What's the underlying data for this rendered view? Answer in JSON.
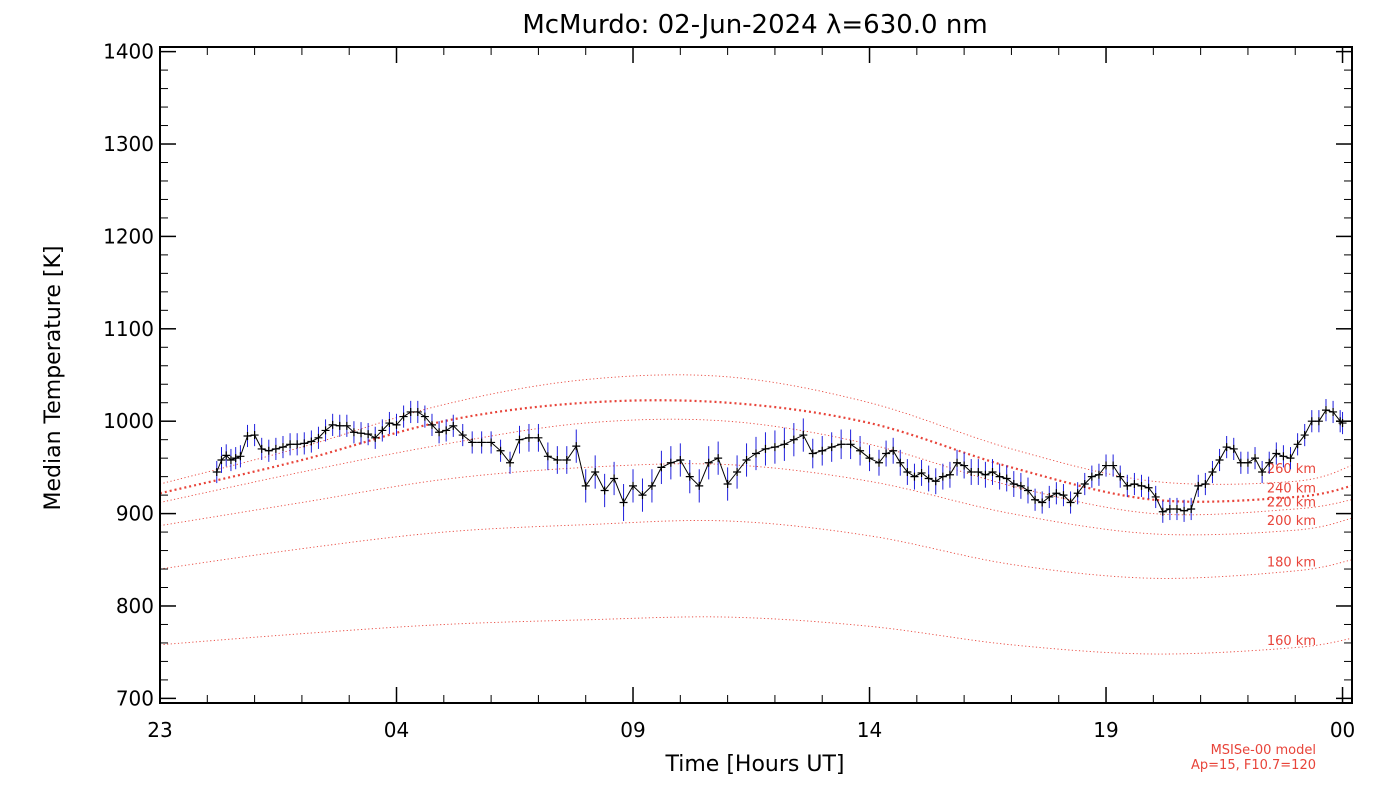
{
  "chart_data": {
    "type": "line",
    "title": "McMurdo: 02-Jun-2024 λ=630.0 nm",
    "xlabel": "Time [Hours UT]",
    "ylabel": "Median Temperature [K]",
    "xlim": [
      23,
      48.2
    ],
    "ylim": [
      695,
      1405
    ],
    "x_ticks": [
      {
        "value": 23,
        "label": "23"
      },
      {
        "value": 28,
        "label": "04"
      },
      {
        "value": 33,
        "label": "09"
      },
      {
        "value": 38,
        "label": "14"
      },
      {
        "value": 43,
        "label": "19"
      },
      {
        "value": 48,
        "label": "00"
      }
    ],
    "y_ticks": [
      {
        "value": 700,
        "label": "700"
      },
      {
        "value": 800,
        "label": "800"
      },
      {
        "value": 900,
        "label": "900"
      },
      {
        "value": 1000,
        "label": "1000"
      },
      {
        "value": 1100,
        "label": "1100"
      },
      {
        "value": 1200,
        "label": "1200"
      },
      {
        "value": 1300,
        "label": "1300"
      },
      {
        "value": 1400,
        "label": "1400"
      }
    ],
    "measurement": {
      "color": "#000000",
      "error_color": "#1f1fdc",
      "points": [
        [
          24.2,
          945,
          12
        ],
        [
          24.3,
          958,
          14
        ],
        [
          24.4,
          963,
          12
        ],
        [
          24.5,
          958,
          12
        ],
        [
          24.6,
          960,
          12
        ],
        [
          24.7,
          962,
          12
        ],
        [
          24.85,
          984,
          12
        ],
        [
          25.0,
          985,
          12
        ],
        [
          25.15,
          970,
          12
        ],
        [
          25.3,
          968,
          12
        ],
        [
          25.45,
          970,
          12
        ],
        [
          25.6,
          972,
          12
        ],
        [
          25.75,
          975,
          12
        ],
        [
          25.9,
          975,
          12
        ],
        [
          26.05,
          976,
          12
        ],
        [
          26.2,
          978,
          12
        ],
        [
          26.35,
          982,
          12
        ],
        [
          26.5,
          990,
          12
        ],
        [
          26.65,
          996,
          12
        ],
        [
          26.8,
          995,
          12
        ],
        [
          26.95,
          995,
          12
        ],
        [
          27.1,
          988,
          12
        ],
        [
          27.25,
          987,
          12
        ],
        [
          27.4,
          986,
          12
        ],
        [
          27.55,
          982,
          12
        ],
        [
          27.7,
          990,
          12
        ],
        [
          27.85,
          998,
          12
        ],
        [
          28.0,
          996,
          12
        ],
        [
          28.15,
          1005,
          12
        ],
        [
          28.3,
          1010,
          12
        ],
        [
          28.45,
          1010,
          12
        ],
        [
          28.6,
          1005,
          12
        ],
        [
          28.75,
          996,
          12
        ],
        [
          28.9,
          988,
          12
        ],
        [
          29.05,
          990,
          12
        ],
        [
          29.2,
          995,
          12
        ],
        [
          29.4,
          985,
          12
        ],
        [
          29.6,
          977,
          12
        ],
        [
          29.8,
          977,
          12
        ],
        [
          30.0,
          977,
          12
        ],
        [
          30.2,
          968,
          12
        ],
        [
          30.4,
          955,
          12
        ],
        [
          30.6,
          980,
          15
        ],
        [
          30.8,
          982,
          15
        ],
        [
          31.0,
          982,
          15
        ],
        [
          31.2,
          962,
          15
        ],
        [
          31.4,
          958,
          15
        ],
        [
          31.6,
          958,
          15
        ],
        [
          31.8,
          973,
          18
        ],
        [
          32.0,
          930,
          18
        ],
        [
          32.2,
          945,
          18
        ],
        [
          32.4,
          925,
          18
        ],
        [
          32.6,
          938,
          18
        ],
        [
          32.8,
          912,
          20
        ],
        [
          33.0,
          930,
          18
        ],
        [
          33.2,
          920,
          18
        ],
        [
          33.4,
          930,
          18
        ],
        [
          33.6,
          950,
          18
        ],
        [
          33.8,
          955,
          18
        ],
        [
          34.0,
          958,
          18
        ],
        [
          34.2,
          940,
          18
        ],
        [
          34.4,
          930,
          18
        ],
        [
          34.6,
          955,
          18
        ],
        [
          34.8,
          960,
          18
        ],
        [
          35.0,
          932,
          18
        ],
        [
          35.2,
          945,
          18
        ],
        [
          35.4,
          958,
          18
        ],
        [
          35.6,
          965,
          18
        ],
        [
          35.8,
          970,
          18
        ],
        [
          36.0,
          972,
          18
        ],
        [
          36.2,
          975,
          18
        ],
        [
          36.4,
          980,
          18
        ],
        [
          36.6,
          985,
          18
        ],
        [
          36.8,
          965,
          16
        ],
        [
          37.0,
          968,
          16
        ],
        [
          37.2,
          972,
          16
        ],
        [
          37.4,
          975,
          16
        ],
        [
          37.6,
          975,
          16
        ],
        [
          37.8,
          968,
          16
        ],
        [
          38.0,
          960,
          14
        ],
        [
          38.2,
          955,
          14
        ],
        [
          38.35,
          965,
          14
        ],
        [
          38.5,
          968,
          14
        ],
        [
          38.65,
          955,
          14
        ],
        [
          38.8,
          945,
          14
        ],
        [
          38.95,
          940,
          14
        ],
        [
          39.1,
          944,
          14
        ],
        [
          39.25,
          938,
          14
        ],
        [
          39.4,
          935,
          14
        ],
        [
          39.55,
          940,
          14
        ],
        [
          39.7,
          942,
          14
        ],
        [
          39.85,
          955,
          14
        ],
        [
          40.0,
          952,
          14
        ],
        [
          40.15,
          945,
          14
        ],
        [
          40.3,
          945,
          14
        ],
        [
          40.45,
          942,
          14
        ],
        [
          40.6,
          945,
          14
        ],
        [
          40.75,
          940,
          14
        ],
        [
          40.9,
          938,
          14
        ],
        [
          41.05,
          932,
          14
        ],
        [
          41.2,
          930,
          14
        ],
        [
          41.35,
          925,
          14
        ],
        [
          41.5,
          915,
          12
        ],
        [
          41.65,
          912,
          12
        ],
        [
          41.8,
          918,
          12
        ],
        [
          41.95,
          922,
          12
        ],
        [
          42.1,
          920,
          12
        ],
        [
          42.25,
          912,
          12
        ],
        [
          42.4,
          922,
          12
        ],
        [
          42.55,
          932,
          12
        ],
        [
          42.7,
          940,
          12
        ],
        [
          42.85,
          942,
          12
        ],
        [
          43.0,
          952,
          12
        ],
        [
          43.15,
          952,
          12
        ],
        [
          43.3,
          940,
          12
        ],
        [
          43.45,
          930,
          12
        ],
        [
          43.6,
          932,
          12
        ],
        [
          43.75,
          930,
          12
        ],
        [
          43.9,
          928,
          12
        ],
        [
          44.05,
          918,
          12
        ],
        [
          44.2,
          902,
          12
        ],
        [
          44.35,
          905,
          12
        ],
        [
          44.5,
          905,
          12
        ],
        [
          44.65,
          903,
          12
        ],
        [
          44.8,
          905,
          12
        ],
        [
          44.95,
          930,
          12
        ],
        [
          45.1,
          932,
          12
        ],
        [
          45.25,
          945,
          12
        ],
        [
          45.4,
          958,
          12
        ],
        [
          45.55,
          972,
          12
        ],
        [
          45.7,
          970,
          12
        ],
        [
          45.85,
          955,
          12
        ],
        [
          46.0,
          955,
          12
        ],
        [
          46.15,
          960,
          12
        ],
        [
          46.3,
          945,
          12
        ],
        [
          46.45,
          955,
          12
        ],
        [
          46.6,
          965,
          12
        ],
        [
          46.75,
          962,
          12
        ],
        [
          46.9,
          960,
          12
        ],
        [
          47.05,
          975,
          12
        ],
        [
          47.2,
          985,
          12
        ],
        [
          47.35,
          1000,
          12
        ],
        [
          47.5,
          1000,
          12
        ],
        [
          47.65,
          1012,
          12
        ],
        [
          47.8,
          1010,
          12
        ],
        [
          47.95,
          1000,
          12
        ],
        [
          48.0,
          998,
          12
        ]
      ]
    },
    "model_curves": [
      {
        "label": "160 km",
        "color": "#e8443a",
        "points": [
          [
            23,
            758
          ],
          [
            26,
            770
          ],
          [
            29,
            780
          ],
          [
            32,
            785
          ],
          [
            35,
            788
          ],
          [
            38,
            778
          ],
          [
            41,
            758
          ],
          [
            44,
            748
          ],
          [
            47,
            755
          ],
          [
            48.2,
            765
          ]
        ]
      },
      {
        "label": "180 km",
        "color": "#e8443a",
        "points": [
          [
            23,
            840
          ],
          [
            26,
            862
          ],
          [
            29,
            880
          ],
          [
            32,
            888
          ],
          [
            35,
            892
          ],
          [
            38,
            876
          ],
          [
            41,
            845
          ],
          [
            44,
            830
          ],
          [
            47,
            838
          ],
          [
            48.2,
            850
          ]
        ]
      },
      {
        "label": "200 km",
        "color": "#e8443a",
        "points": [
          [
            23,
            887
          ],
          [
            26,
            912
          ],
          [
            29,
            937
          ],
          [
            32,
            950
          ],
          [
            35,
            953
          ],
          [
            38,
            935
          ],
          [
            41,
            900
          ],
          [
            44,
            878
          ],
          [
            47,
            882
          ],
          [
            48.2,
            895
          ]
        ]
      },
      {
        "label": "220 km",
        "color": "#e8443a",
        "points": [
          [
            23,
            912
          ],
          [
            26,
            945
          ],
          [
            29,
            975
          ],
          [
            32,
            998
          ],
          [
            35,
            1000
          ],
          [
            38,
            975
          ],
          [
            41,
            930
          ],
          [
            44,
            900
          ],
          [
            47,
            905
          ],
          [
            48.2,
            915
          ]
        ]
      },
      {
        "label": "240 km",
        "color": "#e8443a",
        "bold": true,
        "points": [
          [
            23,
            922
          ],
          [
            26,
            958
          ],
          [
            29,
            1000
          ],
          [
            32,
            1020
          ],
          [
            35,
            1020
          ],
          [
            38,
            998
          ],
          [
            41,
            950
          ],
          [
            44,
            915
          ],
          [
            47,
            918
          ],
          [
            48.2,
            930
          ]
        ]
      },
      {
        "label": "260 km",
        "color": "#e8443a",
        "points": [
          [
            23,
            932
          ],
          [
            26,
            972
          ],
          [
            29,
            1018
          ],
          [
            32,
            1045
          ],
          [
            35,
            1048
          ],
          [
            38,
            1020
          ],
          [
            41,
            970
          ],
          [
            44,
            935
          ],
          [
            47,
            935
          ],
          [
            48.2,
            952
          ]
        ]
      }
    ],
    "model_labels_at_x": 48.0,
    "note_line1": "MSISe-00 model",
    "note_line2": "Ap=15, F10.7=120"
  }
}
